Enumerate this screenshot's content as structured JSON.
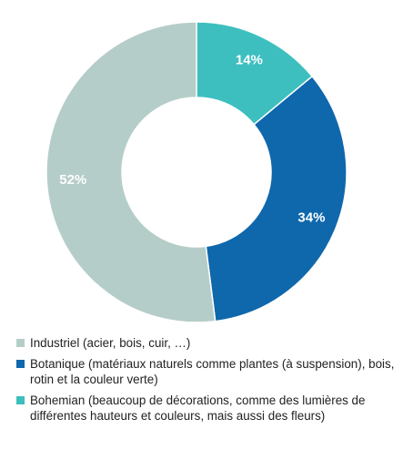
{
  "chart_data": {
    "type": "pie",
    "donut": true,
    "categories": [
      "Bohemian (beaucoup de décorations, comme des lumières de différentes hauteurs et couleurs, mais aussi des fleurs)",
      "Botanique (matériaux naturels comme plantes (à suspension), bois, rotin et la couleur verte)",
      "Industriel (acier, bois, cuir, …)"
    ],
    "values": [
      14,
      34,
      52
    ],
    "value_labels": [
      "14%",
      "34%",
      "52%"
    ],
    "colors": [
      "#3dbfbf",
      "#0f67ac",
      "#b5cdc8"
    ],
    "legend_position": "bottom",
    "legend": [
      {
        "label": "Industriel (acier, bois, cuir, …)",
        "color": "#b5cdc8"
      },
      {
        "label": "Botanique (matériaux naturels comme plantes (à suspension), bois, rotin et la couleur verte)",
        "color": "#0f67ac"
      },
      {
        "label": "Bohemian (beaucoup de décorations, comme des lumières de différentes hauteurs et couleurs, mais aussi des fleurs)",
        "color": "#3dbfbf"
      }
    ]
  }
}
